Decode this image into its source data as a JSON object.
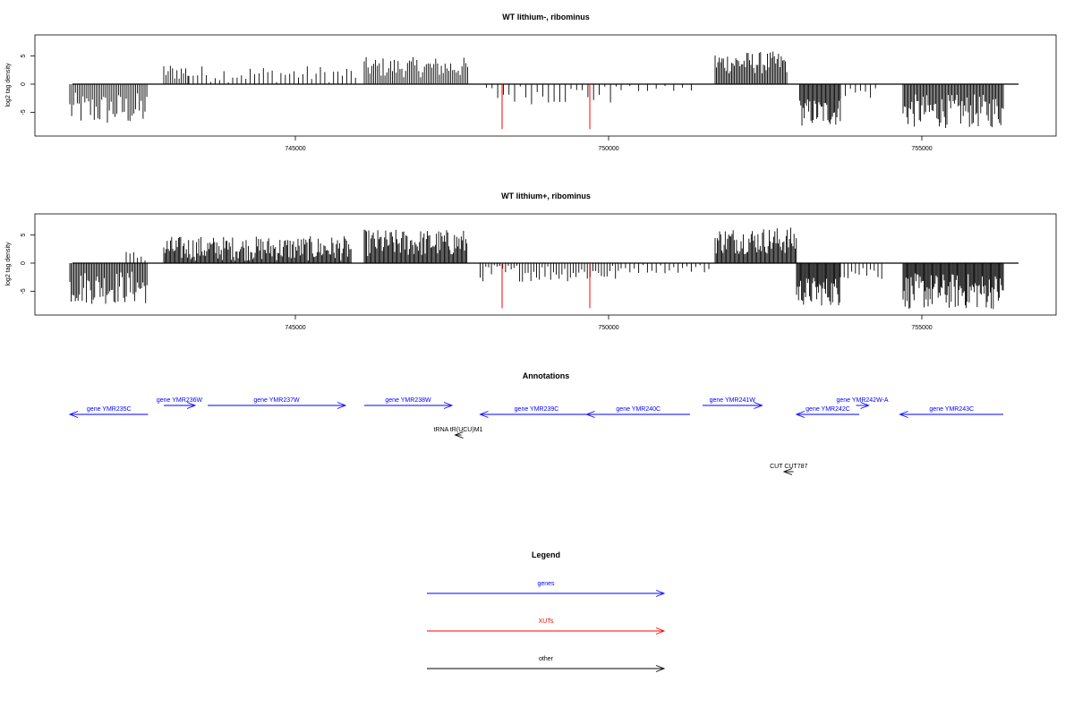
{
  "colors": {
    "gene": "#0000ff",
    "xut": "#ff0000",
    "other": "#000000",
    "signal": "#000000"
  },
  "chart_data": [
    {
      "type": "bar",
      "title": "WT lithium-, ribominus",
      "ylabel": "log2 tag density",
      "xlim": [
        741300,
        757200
      ],
      "ylim": [
        -8.5,
        8.5
      ],
      "x_ticks": [
        745000,
        750000,
        755000
      ],
      "y_ticks": [
        5,
        0,
        -5
      ],
      "x_tick_labels": [
        "745000",
        "750000",
        "755000"
      ],
      "y_tick_labels": [
        "5",
        "0",
        "-5"
      ],
      "grid": false,
      "segments": [
        {
          "x0": 741400,
          "x1": 742650,
          "mean": -4.5,
          "amp": 3.0,
          "step": 30
        },
        {
          "x0": 742900,
          "x1": 743300,
          "mean": 2.2,
          "amp": 1.5,
          "step": 35
        },
        {
          "x0": 743300,
          "x1": 746000,
          "mean": 1.8,
          "amp": 1.5,
          "step": 70
        },
        {
          "x0": 746100,
          "x1": 747750,
          "mean": 3.0,
          "amp": 1.8,
          "step": 30
        },
        {
          "x0": 748050,
          "x1": 750200,
          "mean": -1.8,
          "amp": 1.8,
          "step": 90
        },
        {
          "x0": 750200,
          "x1": 751400,
          "mean": -0.9,
          "amp": 0.6,
          "step": 140
        },
        {
          "x0": 751700,
          "x1": 752850,
          "mean": 3.8,
          "amp": 2.0,
          "step": 22
        },
        {
          "x0": 753050,
          "x1": 753700,
          "mean": -5.0,
          "amp": 2.5,
          "step": 18
        },
        {
          "x0": 753700,
          "x1": 754300,
          "mean": -1.5,
          "amp": 1.2,
          "step": 80
        },
        {
          "x0": 754700,
          "x1": 756300,
          "mean": -4.8,
          "amp": 3.0,
          "step": 20
        }
      ],
      "xut_marks": [
        {
          "x": 748300,
          "value": -8.0
        },
        {
          "x": 749700,
          "value": -8.0
        }
      ]
    },
    {
      "type": "bar",
      "title": "WT lithium+, ribominus",
      "ylabel": "log2 tag density",
      "xlim": [
        741300,
        757200
      ],
      "ylim": [
        -8.5,
        8.5
      ],
      "x_ticks": [
        745000,
        750000,
        755000
      ],
      "y_ticks": [
        5,
        0,
        -5
      ],
      "x_tick_labels": [
        "745000",
        "750000",
        "755000"
      ],
      "y_tick_labels": [
        "5",
        "0",
        "-5"
      ],
      "grid": false,
      "segments": [
        {
          "x0": 741400,
          "x1": 742650,
          "mean": -4.3,
          "amp": 3.0,
          "step": 22
        },
        {
          "x0": 742300,
          "x1": 742650,
          "mean": 1.2,
          "amp": 1.0,
          "step": 60
        },
        {
          "x0": 742900,
          "x1": 745900,
          "mean": 2.6,
          "amp": 2.2,
          "step": 18
        },
        {
          "x0": 746100,
          "x1": 747750,
          "mean": 3.6,
          "amp": 2.4,
          "step": 18
        },
        {
          "x0": 747950,
          "x1": 750200,
          "mean": -1.7,
          "amp": 1.6,
          "step": 45
        },
        {
          "x0": 750200,
          "x1": 751600,
          "mean": -1.0,
          "amp": 0.8,
          "step": 70
        },
        {
          "x0": 751700,
          "x1": 753000,
          "mean": 4.0,
          "amp": 2.4,
          "step": 18
        },
        {
          "x0": 753000,
          "x1": 753700,
          "mean": -5.0,
          "amp": 2.6,
          "step": 16
        },
        {
          "x0": 753700,
          "x1": 754400,
          "mean": -1.6,
          "amp": 1.4,
          "step": 60
        },
        {
          "x0": 754700,
          "x1": 756300,
          "mean": -5.0,
          "amp": 3.2,
          "step": 16
        }
      ],
      "xut_marks": [
        {
          "x": 748300,
          "value": -8.0
        },
        {
          "x": 749700,
          "value": -8.0
        }
      ]
    }
  ],
  "annotations": {
    "title": "Annotations",
    "features": [
      {
        "label": "gene YMR235C",
        "kind": "gene",
        "strand": "-",
        "start": 741400,
        "end": 742650,
        "row": 1
      },
      {
        "label": "gene YMR236W",
        "kind": "gene",
        "strand": "+",
        "start": 742900,
        "end": 743400,
        "row": 0
      },
      {
        "label": "gene YMR237W",
        "kind": "gene",
        "strand": "+",
        "start": 743600,
        "end": 745800,
        "row": 0
      },
      {
        "label": "gene YMR238W",
        "kind": "gene",
        "strand": "+",
        "start": 746100,
        "end": 747500,
        "row": 0
      },
      {
        "label": "gene YMR239C",
        "kind": "gene",
        "strand": "-",
        "start": 747950,
        "end": 749750,
        "row": 1
      },
      {
        "label": "gene YMR240C",
        "kind": "gene",
        "strand": "-",
        "start": 749650,
        "end": 751300,
        "row": 1
      },
      {
        "label": "gene YMR241W",
        "kind": "gene",
        "strand": "+",
        "start": 751500,
        "end": 752450,
        "row": 0
      },
      {
        "label": "gene YMR242C",
        "kind": "gene",
        "strand": "-",
        "start": 753000,
        "end": 754000,
        "row": 1
      },
      {
        "label": "gene YMR242W-A",
        "kind": "gene",
        "strand": "+",
        "start": 753950,
        "end": 754150,
        "row": 0
      },
      {
        "label": "gene YMR243C",
        "kind": "gene",
        "strand": "-",
        "start": 754650,
        "end": 756300,
        "row": 1
      },
      {
        "label": "tRNA tR(UCU)M1",
        "kind": "other",
        "strand": "-",
        "start": 747550,
        "end": 747650,
        "row": 2
      },
      {
        "label": "CUT CUT787",
        "kind": "other",
        "strand": "-",
        "start": 752800,
        "end": 752950,
        "row": 3
      }
    ]
  },
  "legend": {
    "title": "Legend",
    "items": [
      {
        "label": "genes",
        "kind": "gene"
      },
      {
        "label": "XUTs",
        "kind": "xut"
      },
      {
        "label": "other",
        "kind": "other"
      }
    ]
  }
}
